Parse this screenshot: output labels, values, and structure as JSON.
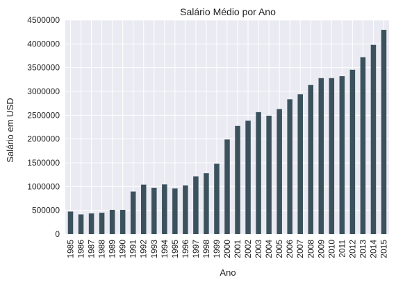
{
  "chart_data": {
    "type": "bar",
    "title": "Salário Médio por Ano",
    "xlabel": "Ano",
    "ylabel": "Salário em USD",
    "categories": [
      "1985",
      "1986",
      "1987",
      "1988",
      "1989",
      "1990",
      "1991",
      "1992",
      "1993",
      "1994",
      "1995",
      "1996",
      "1997",
      "1998",
      "1999",
      "2000",
      "2001",
      "2002",
      "2003",
      "2004",
      "2005",
      "2006",
      "2007",
      "2008",
      "2009",
      "2010",
      "2011",
      "2012",
      "2013",
      "2014",
      "2015"
    ],
    "values": [
      475000,
      415000,
      435000,
      450000,
      510000,
      510000,
      895000,
      1040000,
      975000,
      1045000,
      960000,
      1025000,
      1215000,
      1280000,
      1480000,
      1990000,
      2275000,
      2385000,
      2565000,
      2490000,
      2630000,
      2835000,
      2940000,
      3135000,
      3280000,
      3280000,
      3320000,
      3455000,
      3720000,
      3980000,
      4295000
    ],
    "yticks": [
      0,
      500000,
      1000000,
      1500000,
      2000000,
      2500000,
      3000000,
      3500000,
      4000000,
      4500000
    ],
    "ylim": [
      0,
      4500000
    ],
    "grid": true,
    "colors": {
      "bar": "#3b525d",
      "plot_background": "#eaeaf2",
      "grid": "#ffffff"
    }
  }
}
